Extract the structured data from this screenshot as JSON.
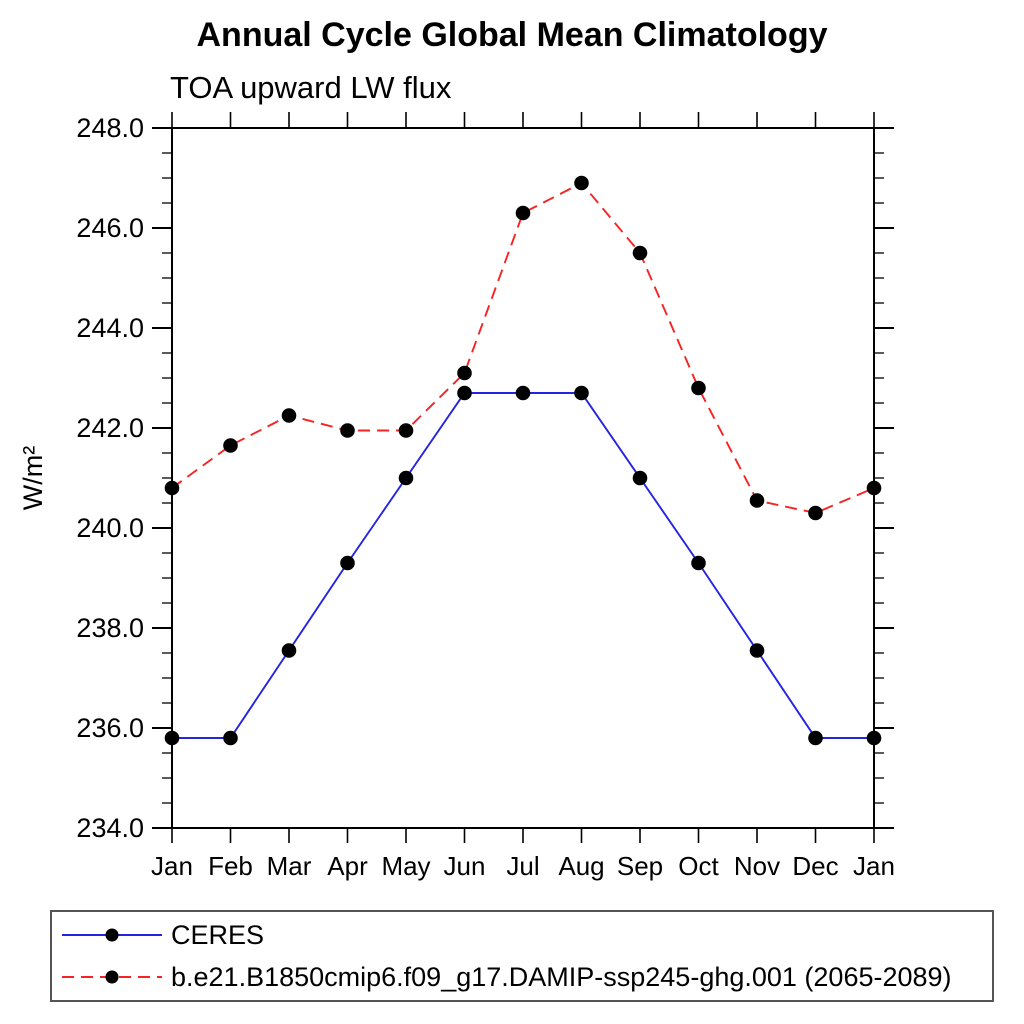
{
  "chart_data": {
    "type": "line",
    "title": "Annual Cycle Global Mean Climatology",
    "subtitle": "TOA upward LW flux",
    "ylabel": "W/m²",
    "xlabel": "",
    "x_tick_labels": [
      "Jan",
      "Feb",
      "Mar",
      "Apr",
      "May",
      "Jun",
      "Jul",
      "Aug",
      "Sep",
      "Oct",
      "Nov",
      "Dec",
      "Jan"
    ],
    "ylim": [
      234.0,
      248.0
    ],
    "y_ticks": {
      "major": [
        234,
        236,
        238,
        240,
        242,
        244,
        246,
        248
      ],
      "labels": [
        "234.0",
        "236.0",
        "238.0",
        "240.0",
        "242.0",
        "244.0",
        "246.0",
        "248.0"
      ],
      "minor_step": 0.5
    },
    "grid": "off",
    "legend_position": "bottom-left-box",
    "series": [
      {
        "name": "CERES",
        "color": "#2424e0",
        "style": "solid",
        "marker": "filled-circle",
        "marker_color": "#000000",
        "values": [
          235.8,
          235.8,
          237.55,
          239.3,
          241.0,
          242.7,
          242.7,
          242.7,
          241.0,
          239.3,
          237.55,
          235.8,
          235.8
        ]
      },
      {
        "name": "b.e21.B1850cmip6.f09_g17.DAMIP-ssp245-ghg.001 (2065-2089)",
        "color": "#f92222",
        "style": "dashed",
        "marker": "filled-circle",
        "marker_color": "#000000",
        "values": [
          240.8,
          241.65,
          242.25,
          241.95,
          241.95,
          243.1,
          246.3,
          246.9,
          245.5,
          242.8,
          240.55,
          240.3,
          240.8
        ]
      }
    ]
  }
}
